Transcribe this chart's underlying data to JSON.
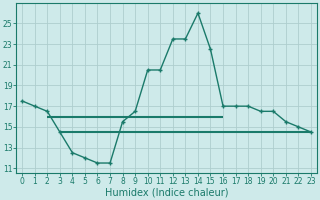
{
  "x": [
    0,
    1,
    2,
    3,
    4,
    5,
    6,
    7,
    8,
    9,
    10,
    11,
    12,
    13,
    14,
    15,
    16,
    17,
    18,
    19,
    20,
    21,
    22,
    23
  ],
  "y_main": [
    17.5,
    17.0,
    16.5,
    14.5,
    12.5,
    12.0,
    11.5,
    11.5,
    15.5,
    16.5,
    20.5,
    20.5,
    23.5,
    23.5,
    26.0,
    22.5,
    17.0,
    17.0,
    17.0,
    16.5,
    16.5,
    15.5,
    15.0,
    14.5
  ],
  "hline1_y": 16.0,
  "hline1_xstart": 2,
  "hline1_xend": 16,
  "hline2_y": 14.5,
  "hline2_xstart": 3,
  "hline2_xend": 23,
  "xlabel": "Humidex (Indice chaleur)",
  "line_color": "#1a7a6a",
  "bg_color": "#ceeaea",
  "grid_color": "#aecece",
  "xlim": [
    -0.5,
    23.5
  ],
  "ylim": [
    10.5,
    27.0
  ],
  "yticks": [
    11,
    13,
    15,
    17,
    19,
    21,
    23,
    25
  ],
  "xticks": [
    0,
    1,
    2,
    3,
    4,
    5,
    6,
    7,
    8,
    9,
    10,
    11,
    12,
    13,
    14,
    15,
    16,
    17,
    18,
    19,
    20,
    21,
    22,
    23
  ],
  "tick_fontsize": 5.5,
  "xlabel_fontsize": 7.0
}
